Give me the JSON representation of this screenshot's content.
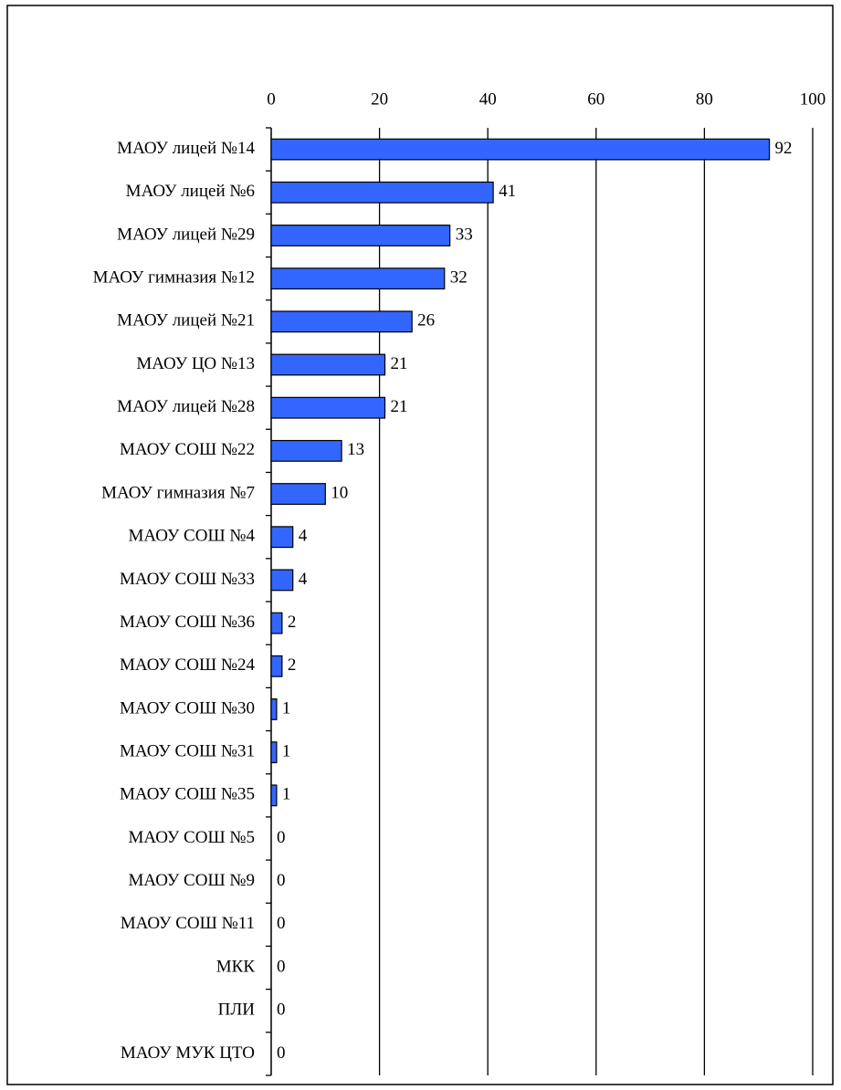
{
  "chart_data": {
    "type": "bar",
    "orientation": "horizontal",
    "categories": [
      "МАОУ лицей №14",
      "МАОУ лицей №6",
      "МАОУ лицей №29",
      "МАОУ гимназия №12",
      "МАОУ лицей №21",
      "МАОУ ЦО №13",
      "МАОУ лицей №28",
      "МАОУ СОШ №22",
      "МАОУ гимназия №7",
      "МАОУ СОШ №4",
      "МАОУ СОШ №33",
      "МАОУ СОШ №36",
      "МАОУ СОШ №24",
      "МАОУ СОШ №30",
      "МАОУ СОШ №31",
      "МАОУ СОШ №35",
      "МАОУ СОШ №5",
      "МАОУ СОШ №9",
      "МАОУ СОШ №11",
      "МКК",
      "ПЛИ",
      "МАОУ МУК ЦТО"
    ],
    "values": [
      92,
      41,
      33,
      32,
      26,
      21,
      21,
      13,
      10,
      4,
      4,
      2,
      2,
      1,
      1,
      1,
      0,
      0,
      0,
      0,
      0,
      0
    ],
    "color": "#3366ff",
    "xlim": [
      0,
      100
    ],
    "xticks": [
      0,
      20,
      40,
      60,
      80,
      100
    ],
    "grid": true
  }
}
